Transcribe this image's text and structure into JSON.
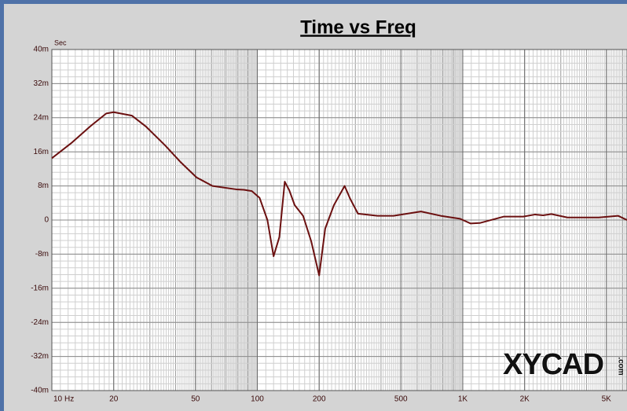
{
  "chart_data": {
    "type": "line",
    "title": "Time vs Freq",
    "ylabel": "Sec",
    "xlabel": "Hz",
    "watermark": "XYCAD",
    "watermark_suffix": ".com",
    "xscale": "log",
    "xlim": [
      10,
      6300
    ],
    "xticks": [
      10,
      20,
      50,
      100,
      200,
      500,
      {
        "value": 1000,
        "label": "1K"
      },
      {
        "value": 2000,
        "label": "2K"
      },
      {
        "value": 5000,
        "label": "5K"
      }
    ],
    "ylim": [
      -0.04,
      0.04
    ],
    "yticks": [
      {
        "value": -0.04,
        "label": "-40m"
      },
      {
        "value": -0.032,
        "label": "-32m"
      },
      {
        "value": -0.024,
        "label": "-24m"
      },
      {
        "value": -0.016,
        "label": "-16m"
      },
      {
        "value": -0.008,
        "label": "-8m"
      },
      0,
      {
        "value": 0.008,
        "label": "8m"
      },
      {
        "value": 0.016,
        "label": "16m"
      },
      {
        "value": 0.024,
        "label": "24m"
      },
      {
        "value": 0.032,
        "label": "32m"
      },
      {
        "value": 0.04,
        "label": "40m"
      }
    ],
    "grid": true,
    "minor_grid": true,
    "x": [
      10,
      12.4,
      15.4,
      18.4,
      20,
      24.5,
      28.6,
      35.6,
      42.5,
      50.6,
      60.5,
      78.9,
      86,
      94,
      102.6,
      112,
      120,
      128,
      136,
      143,
      152,
      167,
      183,
      200,
      214,
      236,
      266,
      283,
      309,
      385,
      460,
      626,
      780,
      970,
      1090,
      1210,
      1580,
      1970,
      2250,
      2460,
      2700,
      3230,
      4590,
      5700,
      6300
    ],
    "series": [
      {
        "name": "Time",
        "color": "#6b1010",
        "values": [
          0.0145,
          0.018,
          0.022,
          0.025,
          0.0253,
          0.0245,
          0.022,
          0.0175,
          0.0135,
          0.01,
          0.008,
          0.0072,
          0.0071,
          0.0068,
          0.0052,
          0,
          -0.0085,
          -0.004,
          0.009,
          0.007,
          0.0035,
          0.001,
          -0.005,
          -0.013,
          -0.002,
          0.0035,
          0.008,
          0.005,
          0.0015,
          0.001,
          0.001,
          0.002,
          0.001,
          0.0003,
          -0.0008,
          -0.0007,
          0.0008,
          0.0008,
          0.0013,
          0.0011,
          0.0014,
          0.0006,
          0.0006,
          0.001,
          0
        ]
      }
    ]
  }
}
